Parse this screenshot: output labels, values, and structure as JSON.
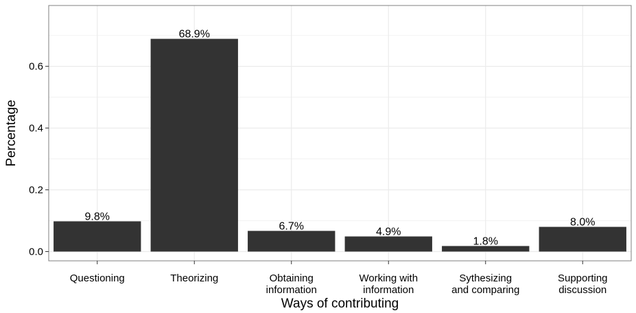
{
  "chart_data": {
    "type": "bar",
    "title": "",
    "xlabel": "Ways of contributing",
    "ylabel": "Percentage",
    "categories": [
      [
        "Questioning"
      ],
      [
        "Theorizing"
      ],
      [
        "Obtaining",
        "information"
      ],
      [
        "Working with",
        "information"
      ],
      [
        "Sythesizing",
        "and comparing"
      ],
      [
        "Supporting",
        "discussion"
      ]
    ],
    "values": [
      0.098,
      0.689,
      0.067,
      0.049,
      0.018,
      0.08
    ],
    "data_labels": [
      "9.8%",
      "68.9%",
      "6.7%",
      "4.9%",
      "1.8%",
      "8.0%"
    ],
    "y_ticks": [
      0.0,
      0.2,
      0.4,
      0.6
    ],
    "y_tick_labels": [
      "0.0",
      "0.2",
      "0.4",
      "0.6"
    ],
    "ylim": [
      -0.03,
      0.797
    ],
    "grid": true,
    "legend": "none",
    "colors": {
      "bar": "#333333",
      "grid": "#ebebeb",
      "panel_border": "#7f7f7f",
      "background": "#ffffff"
    }
  }
}
